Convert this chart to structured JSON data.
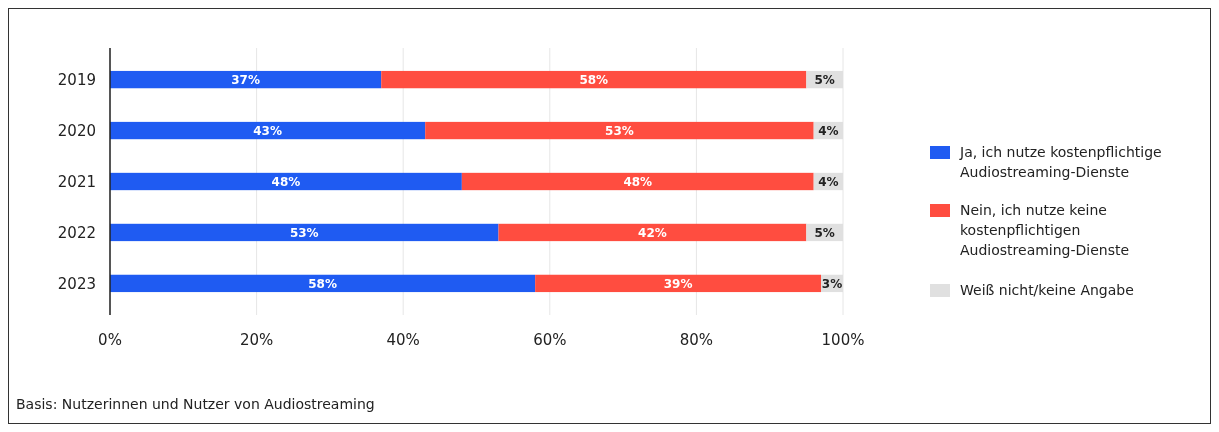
{
  "chart_data": {
    "type": "bar",
    "orientation": "horizontal",
    "stacked": true,
    "categories": [
      "2019",
      "2020",
      "2021",
      "2022",
      "2023"
    ],
    "series": [
      {
        "name": "Ja, ich nutze kostenpflichtige Audiostreaming-Dienste",
        "color": "#1f5bf2",
        "values": [
          37,
          43,
          48,
          53,
          58
        ],
        "value_labels": [
          "37%",
          "43%",
          "48%",
          "53%",
          "58%"
        ]
      },
      {
        "name": "Nein, ich nutze keine kostenpflichtigen Audiostreaming-Dienste",
        "color": "#ff4d40",
        "values": [
          58,
          53,
          48,
          42,
          39
        ],
        "value_labels": [
          "58%",
          "53%",
          "48%",
          "42%",
          "39%"
        ]
      },
      {
        "name": "Weiß nicht/keine Angabe",
        "color": "#e0e0e0",
        "values": [
          5,
          4,
          4,
          5,
          3
        ],
        "value_labels": [
          "5%",
          "4%",
          "4%",
          "5%",
          "3%"
        ]
      }
    ],
    "xlim": [
      0,
      100
    ],
    "xticks": [
      {
        "value": 0,
        "label": "0%"
      },
      {
        "value": 20,
        "label": "20%"
      },
      {
        "value": 40,
        "label": "40%"
      },
      {
        "value": 60,
        "label": "60%"
      },
      {
        "value": 80,
        "label": "80%"
      },
      {
        "value": 100,
        "label": "100%"
      }
    ],
    "grid": "x",
    "legend": "right",
    "annotations": [
      "Basis: Nutzerinnen und Nutzer von Audiostreaming"
    ]
  }
}
